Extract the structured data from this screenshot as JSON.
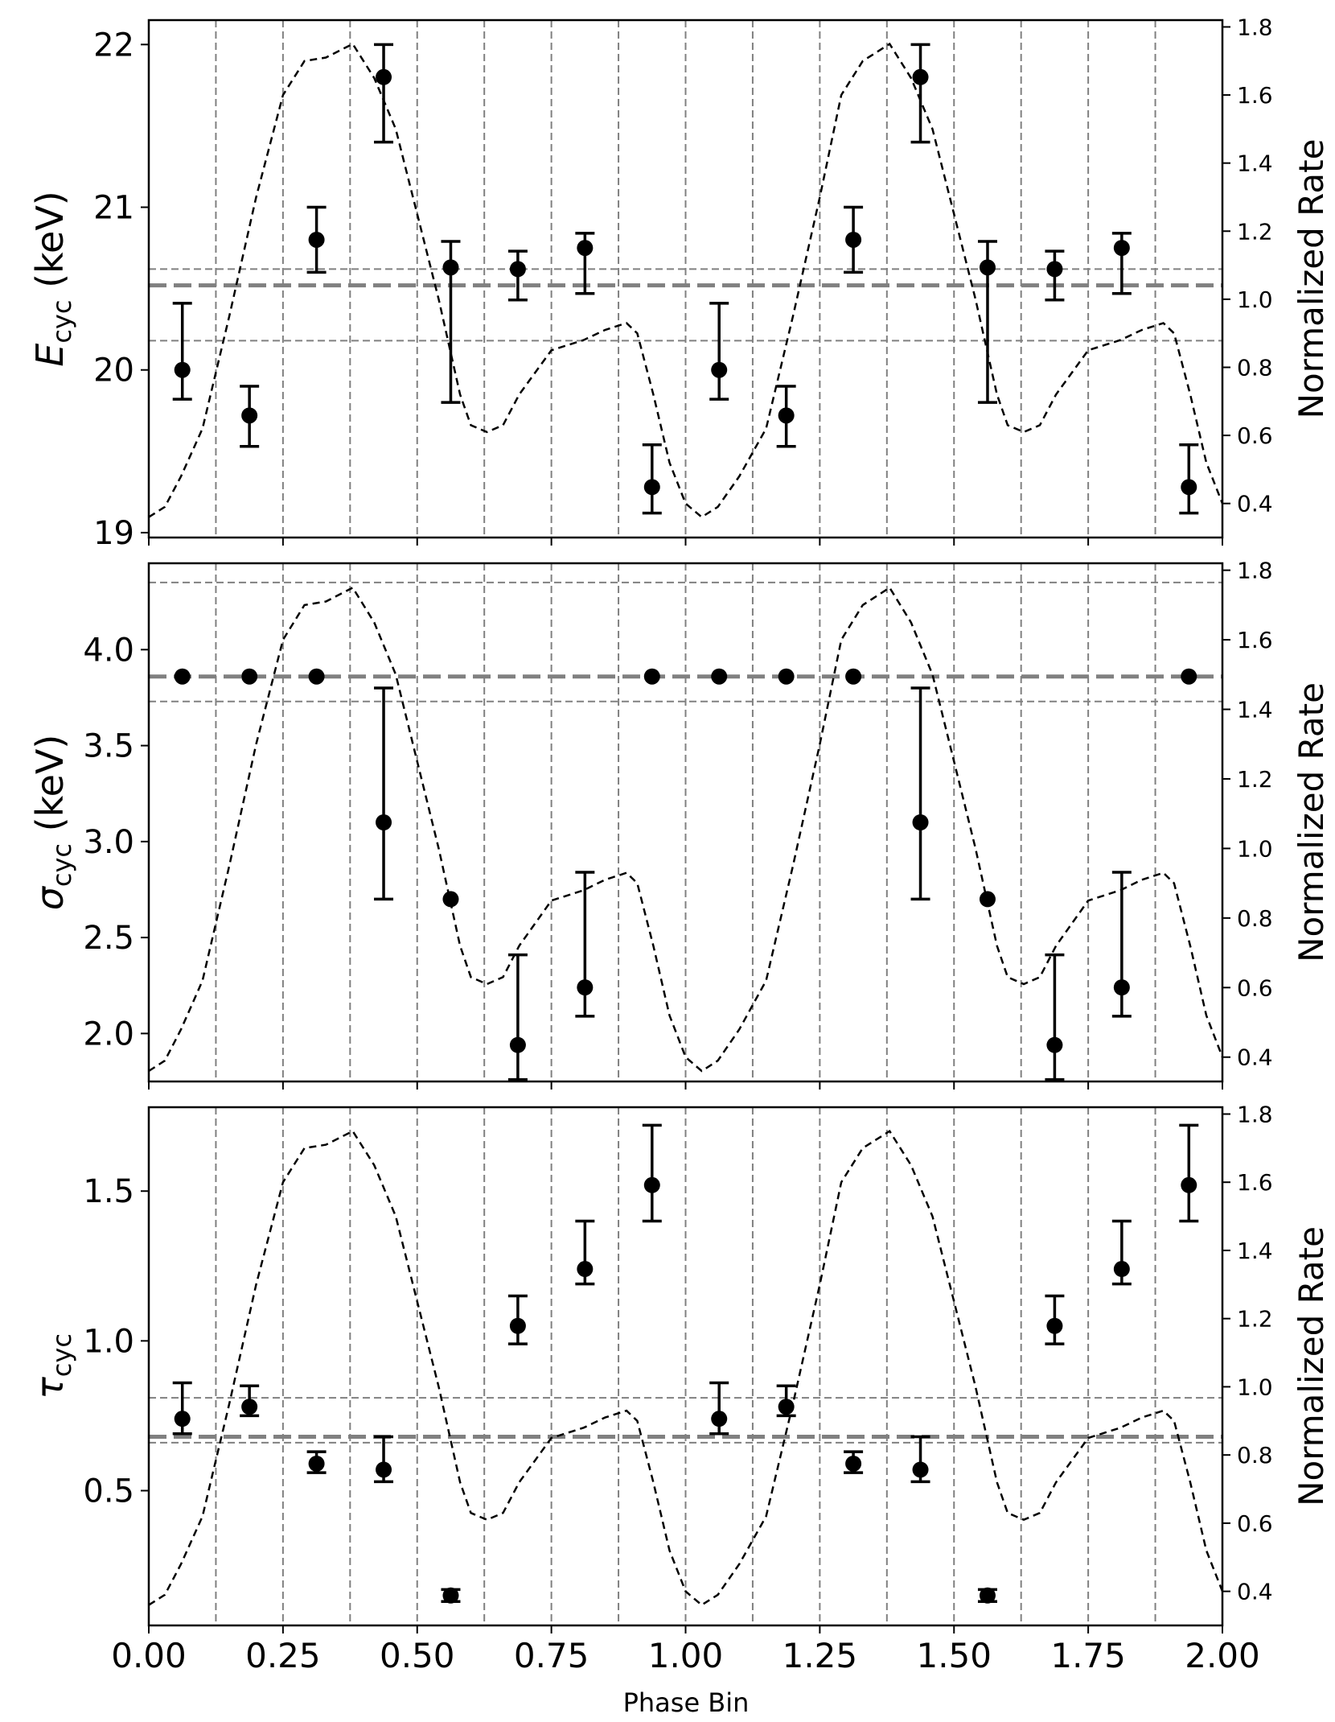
{
  "figure": {
    "xlabel": "Phase Bin",
    "right_ylabel": "Normalized Rate"
  },
  "chart_data": [
    {
      "type": "scatter",
      "panel": "E_cyc",
      "ylabel_symbol": "E",
      "ylabel_sub": "cyc",
      "ylabel_unit": " (keV)",
      "ylim": [
        18.97,
        22.15
      ],
      "y_ticks": [
        19,
        20,
        21,
        22
      ],
      "y_tick_labels": [
        "19",
        "20",
        "21",
        "22"
      ],
      "y2lim": [
        0.3,
        1.82
      ],
      "y2_ticks": [
        0.4,
        0.6,
        0.8,
        1.0,
        1.2,
        1.4,
        1.6,
        1.8
      ],
      "y2_tick_labels": [
        "0.4",
        "0.6",
        "0.8",
        "1.0",
        "1.2",
        "1.4",
        "1.6",
        "1.8"
      ],
      "xlim": [
        0,
        2
      ],
      "x_ticks": [
        0.0,
        0.25,
        0.5,
        0.75,
        1.0,
        1.25,
        1.5,
        1.75,
        2.0
      ],
      "x_tick_labels": [
        "0.00",
        "0.25",
        "0.50",
        "0.75",
        "1.00",
        "1.25",
        "1.50",
        "1.75",
        "2.00"
      ],
      "show_x_tick_labels": false,
      "mean_line": 20.52,
      "band": [
        20.18,
        20.62
      ],
      "x": [
        0.0625,
        0.1875,
        0.3125,
        0.4375,
        0.5625,
        0.6875,
        0.8125,
        0.9375,
        1.0625,
        1.1875,
        1.3125,
        1.4375,
        1.5625,
        1.6875,
        1.8125,
        1.9375
      ],
      "y": [
        20.0,
        19.72,
        20.8,
        21.8,
        20.63,
        20.62,
        20.75,
        19.28,
        20.0,
        19.72,
        20.8,
        21.8,
        20.63,
        20.62,
        20.75,
        19.28
      ],
      "y_low": [
        19.82,
        19.53,
        20.6,
        21.4,
        19.8,
        20.43,
        20.47,
        19.12,
        19.82,
        19.53,
        20.6,
        21.4,
        19.8,
        20.43,
        20.47,
        19.12
      ],
      "y_high": [
        20.41,
        19.9,
        21.0,
        22.0,
        20.79,
        20.73,
        20.84,
        19.54,
        20.41,
        19.9,
        21.0,
        22.0,
        20.79,
        20.73,
        20.84,
        19.54
      ]
    },
    {
      "type": "scatter",
      "panel": "sigma_cyc",
      "ylabel_symbol": "σ",
      "ylabel_sub": "cyc",
      "ylabel_unit": " (keV)",
      "ylim": [
        1.75,
        4.45
      ],
      "y_ticks": [
        2.0,
        2.5,
        3.0,
        3.5,
        4.0
      ],
      "y_tick_labels": [
        "2.0",
        "2.5",
        "3.0",
        "3.5",
        "4.0"
      ],
      "y2lim": [
        0.33,
        1.82
      ],
      "y2_ticks": [
        0.4,
        0.6,
        0.8,
        1.0,
        1.2,
        1.4,
        1.6,
        1.8
      ],
      "y2_tick_labels": [
        "0.4",
        "0.6",
        "0.8",
        "1.0",
        "1.2",
        "1.4",
        "1.6",
        "1.8"
      ],
      "xlim": [
        0,
        2
      ],
      "x_ticks": [
        0.0,
        0.25,
        0.5,
        0.75,
        1.0,
        1.25,
        1.5,
        1.75,
        2.0
      ],
      "x_tick_labels": [
        "0.00",
        "0.25",
        "0.50",
        "0.75",
        "1.00",
        "1.25",
        "1.50",
        "1.75",
        "2.00"
      ],
      "show_x_tick_labels": false,
      "mean_line": 3.86,
      "band": [
        3.73,
        4.35
      ],
      "x": [
        0.0625,
        0.1875,
        0.3125,
        0.4375,
        0.5625,
        0.6875,
        0.8125,
        0.9375,
        1.0625,
        1.1875,
        1.3125,
        1.4375,
        1.5625,
        1.6875,
        1.8125,
        1.9375
      ],
      "y": [
        3.86,
        3.86,
        3.86,
        3.1,
        2.7,
        1.94,
        2.24,
        3.86,
        3.86,
        3.86,
        3.86,
        3.1,
        2.7,
        1.94,
        2.24,
        3.86
      ],
      "y_low": [
        null,
        null,
        null,
        2.7,
        null,
        1.76,
        2.09,
        null,
        null,
        null,
        null,
        2.7,
        null,
        1.76,
        2.09,
        null
      ],
      "y_high": [
        null,
        null,
        null,
        3.8,
        null,
        2.41,
        2.84,
        null,
        null,
        null,
        null,
        3.8,
        null,
        2.41,
        2.84,
        null
      ]
    },
    {
      "type": "scatter",
      "panel": "tau_cyc",
      "ylabel_symbol": "τ",
      "ylabel_sub": "cyc",
      "ylabel_unit": "",
      "ylim": [
        0.05,
        1.78
      ],
      "y_ticks": [
        0.5,
        1.0,
        1.5
      ],
      "y_tick_labels": [
        "0.5",
        "1.0",
        "1.5"
      ],
      "y2lim": [
        0.3,
        1.82
      ],
      "y2_ticks": [
        0.4,
        0.6,
        0.8,
        1.0,
        1.2,
        1.4,
        1.6,
        1.8
      ],
      "y2_tick_labels": [
        "0.4",
        "0.6",
        "0.8",
        "1.0",
        "1.2",
        "1.4",
        "1.6",
        "1.8"
      ],
      "xlim": [
        0,
        2
      ],
      "x_ticks": [
        0.0,
        0.25,
        0.5,
        0.75,
        1.0,
        1.25,
        1.5,
        1.75,
        2.0
      ],
      "x_tick_labels": [
        "0.00",
        "0.25",
        "0.50",
        "0.75",
        "1.00",
        "1.25",
        "1.50",
        "1.75",
        "2.00"
      ],
      "show_x_tick_labels": true,
      "mean_line": 0.68,
      "band": [
        0.66,
        0.81
      ],
      "x": [
        0.0625,
        0.1875,
        0.3125,
        0.4375,
        0.5625,
        0.6875,
        0.8125,
        0.9375,
        1.0625,
        1.1875,
        1.3125,
        1.4375,
        1.5625,
        1.6875,
        1.8125,
        1.9375
      ],
      "y": [
        0.74,
        0.78,
        0.59,
        0.57,
        0.15,
        1.05,
        1.24,
        1.52,
        0.74,
        0.78,
        0.59,
        0.57,
        0.15,
        1.05,
        1.24,
        1.52
      ],
      "y_low": [
        0.69,
        0.75,
        0.56,
        0.53,
        0.13,
        0.99,
        1.19,
        1.4,
        0.69,
        0.75,
        0.56,
        0.53,
        0.13,
        0.99,
        1.19,
        1.4
      ],
      "y_high": [
        0.86,
        0.85,
        0.63,
        0.68,
        0.17,
        1.15,
        1.4,
        1.72,
        0.86,
        0.85,
        0.63,
        0.68,
        0.17,
        1.15,
        1.4,
        1.72
      ]
    }
  ],
  "pulse_profile": {
    "x": [
      0.0,
      0.03,
      0.06,
      0.1,
      0.15,
      0.2,
      0.25,
      0.29,
      0.33,
      0.38,
      0.42,
      0.46,
      0.5,
      0.54,
      0.58,
      0.6,
      0.63,
      0.66,
      0.69,
      0.75,
      0.81,
      0.85,
      0.89,
      0.91,
      0.94,
      0.97,
      1.0,
      1.03,
      1.06,
      1.1,
      1.15,
      1.2,
      1.25,
      1.29,
      1.33,
      1.38,
      1.42,
      1.46,
      1.5,
      1.54,
      1.58,
      1.6,
      1.63,
      1.66,
      1.69,
      1.75,
      1.81,
      1.85,
      1.89,
      1.91,
      1.94,
      1.97,
      2.0
    ],
    "y": [
      0.36,
      0.39,
      0.48,
      0.62,
      0.95,
      1.3,
      1.6,
      1.7,
      1.71,
      1.75,
      1.65,
      1.5,
      1.25,
      1.0,
      0.72,
      0.63,
      0.61,
      0.63,
      0.72,
      0.85,
      0.88,
      0.91,
      0.93,
      0.9,
      0.72,
      0.52,
      0.4,
      0.36,
      0.39,
      0.48,
      0.62,
      0.95,
      1.3,
      1.6,
      1.7,
      1.75,
      1.65,
      1.5,
      1.25,
      1.0,
      0.72,
      0.63,
      0.61,
      0.63,
      0.72,
      0.85,
      0.88,
      0.91,
      0.93,
      0.9,
      0.72,
      0.52,
      0.4
    ]
  },
  "styles": {
    "grid_color": "#808080",
    "mean_color": "#808080",
    "marker_color": "#000000"
  }
}
